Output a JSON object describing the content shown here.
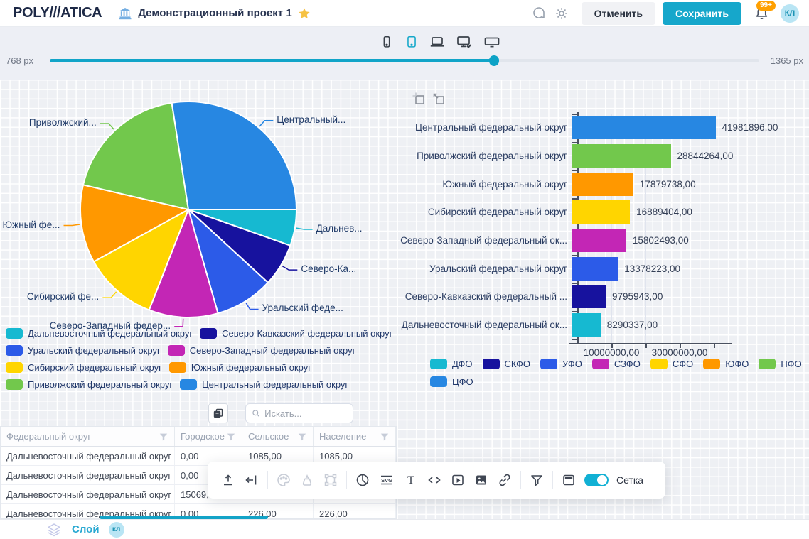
{
  "header": {
    "logo": "POLY///ATICA",
    "title": "Демонстрационный проект 1",
    "cancel": "Отменить",
    "save": "Сохранить",
    "badge": "99+",
    "avatar": "КЛ"
  },
  "device_bar": {
    "devices": [
      "phone",
      "tablet",
      "laptop",
      "desktop-check",
      "widescreen"
    ],
    "active": "tablet"
  },
  "viewport": {
    "min": "768 px",
    "max": "1365 px"
  },
  "colors": {
    "accent": "#13a3c7",
    "badge": "#ffa000",
    "canvas": "#eef0f4",
    "grid_line": "#ffffff"
  },
  "regions": [
    {
      "abbr": "ЦФО",
      "name": "Центральный федеральный округ",
      "bar_label": "Центральный федеральный округ",
      "pie_label": "Центральный...",
      "value": 41981896,
      "display": "41981896,00",
      "color": "#2787e2"
    },
    {
      "abbr": "ПФО",
      "name": "Приволжский федеральный округ",
      "bar_label": "Приволжский федеральный округ",
      "pie_label": "Приволжский...",
      "value": 28844264,
      "display": "28844264,00",
      "color": "#72c84c"
    },
    {
      "abbr": "ЮФО",
      "name": "Южный федеральный округ",
      "bar_label": "Южный федеральный округ",
      "pie_label": "Южный фе...",
      "value": 17879738,
      "display": "17879738,00",
      "color": "#ff9800"
    },
    {
      "abbr": "СФО",
      "name": "Сибирский федеральный округ",
      "bar_label": "Сибирский федеральный округ",
      "pie_label": "Сибирский фе...",
      "value": 16889404,
      "display": "16889404,00",
      "color": "#ffd500"
    },
    {
      "abbr": "СЗФО",
      "name": "Северо-Западный федеральный округ",
      "bar_label": "Северо-Западный федеральный ок...",
      "pie_label": "Северо-Западный федер...",
      "value": 15802493,
      "display": "15802493,00",
      "color": "#c326b5"
    },
    {
      "abbr": "УФО",
      "name": "Уральский федеральный округ",
      "bar_label": "Уральский федеральный округ",
      "pie_label": "Уральский феде...",
      "value": 13378223,
      "display": "13378223,00",
      "color": "#2c5be8"
    },
    {
      "abbr": "СКФО",
      "name": "Северо-Кавказский федеральный округ",
      "bar_label": "Северо-Кавказский федеральный ...",
      "pie_label": "Северо-Ка...",
      "value": 9795943,
      "display": "9795943,00",
      "color": "#17129e"
    },
    {
      "abbr": "ДФО",
      "name": "Дальневосточный федеральный округ",
      "bar_label": "Дальневосточный федеральный ок...",
      "pie_label": "Дальнев...",
      "value": 8290337,
      "display": "8290337,00",
      "color": "#16b9d1"
    }
  ],
  "pie_order": [
    "ДФО",
    "СКФО",
    "УФО",
    "СЗФО",
    "СФО",
    "ЮФО",
    "ПФО",
    "ЦФО"
  ],
  "legend_order": [
    "ДФО",
    "СКФО",
    "УФО",
    "СЗФО",
    "СФО",
    "ЮФО",
    "ПФО",
    "ЦФО"
  ],
  "bar_axis": {
    "tick_step": 10000000,
    "max": 44000000,
    "ticks_shown": [
      "10000000,00",
      "30000000,00"
    ]
  },
  "chart_data": [
    {
      "type": "pie",
      "title": "",
      "legend_position": "bottom",
      "categories": [
        "Дальневосточный федеральный округ",
        "Северо-Кавказский федеральный округ",
        "Уральский федеральный округ",
        "Северо-Западный федеральный округ",
        "Сибирский федеральный округ",
        "Южный федеральный округ",
        "Приволжский федеральный округ",
        "Центральный федеральный округ"
      ],
      "values": [
        8290337,
        9795943,
        13378223,
        15802493,
        16889404,
        17879738,
        28844264,
        41981896
      ]
    },
    {
      "type": "bar",
      "orientation": "horizontal",
      "title": "",
      "legend_position": "bottom",
      "categories": [
        "Центральный федеральный округ",
        "Приволжский федеральный округ",
        "Южный федеральный округ",
        "Сибирский федеральный округ",
        "Северо-Западный федеральный округ",
        "Уральский федеральный округ",
        "Северо-Кавказский федеральный округ",
        "Дальневосточный федеральный округ"
      ],
      "values": [
        41981896,
        28844264,
        17879738,
        16889404,
        15802493,
        13378223,
        9795943,
        8290337
      ],
      "value_labels": [
        "41981896,00",
        "28844264,00",
        "17879738,00",
        "16889404,00",
        "15802493,00",
        "13378223,00",
        "9795943,00",
        "8290337,00"
      ],
      "xlim": [
        0,
        44000000
      ],
      "x_tick_labels": [
        "10000000,00",
        "30000000,00"
      ],
      "grid": true
    }
  ],
  "table": {
    "search_placeholder": "Искать...",
    "columns": [
      "Федеральный округ",
      "Городское",
      "Сельское",
      "Население"
    ],
    "rows": [
      [
        "Дальневосточный федеральный округ",
        "0,00",
        "1085,00",
        "1085,00"
      ],
      [
        "Дальневосточный федеральный округ",
        "0,00",
        "",
        ""
      ],
      [
        "Дальневосточный федеральный округ",
        "15069,",
        "",
        ""
      ],
      [
        "Дальневосточный федеральный округ",
        "0,00",
        "226,00",
        "226,00"
      ]
    ]
  },
  "floating_toolbar": {
    "grid_label": "Сетка",
    "grid_on": true
  },
  "layer_bar": {
    "label": "Слой",
    "avatar": "кл"
  }
}
